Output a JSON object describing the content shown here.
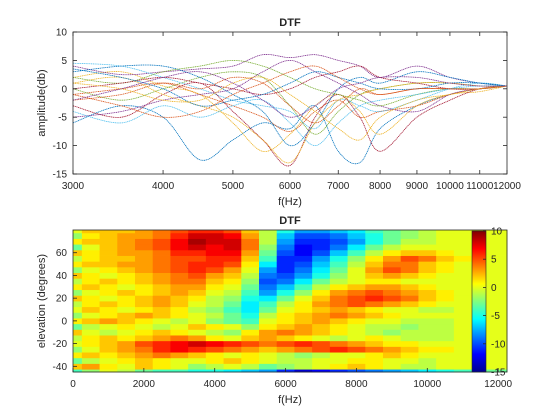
{
  "colors": {
    "series": [
      "#0072BD",
      "#D95319",
      "#EDB120",
      "#7E2F8E",
      "#77AC30",
      "#4DBEEE",
      "#A2142F"
    ],
    "axis": "#262626",
    "grid": "#e6e6e6"
  },
  "chart_data": [
    {
      "type": "line",
      "title": "DTF",
      "xlabel": "f(Hz)",
      "ylabel": "amplitude(db)",
      "xscale": "log",
      "xlim": [
        3000,
        12000
      ],
      "ylim": [
        -15,
        10
      ],
      "xticks": [
        3000,
        4000,
        5000,
        6000,
        7000,
        8000,
        9000,
        10000,
        11000,
        12000
      ],
      "xtick_labels": [
        "3000",
        "4000",
        "5000",
        "6000",
        "7000",
        "8000",
        "9000",
        "10000",
        "11000",
        "12000"
      ],
      "yticks": [
        -15,
        -10,
        -5,
        0,
        5,
        10
      ],
      "ytick_labels": [
        "-15",
        "-10",
        "-5",
        "0",
        "5",
        "10"
      ],
      "grid": false,
      "x": [
        3000,
        3500,
        4000,
        4500,
        5000,
        5500,
        6000,
        6500,
        7000,
        7500,
        8000,
        9000,
        10000,
        11000,
        12000
      ],
      "series": [
        {
          "values": [
            -6,
            -3,
            -5,
            -12.5,
            -9,
            -6,
            -7,
            -3,
            -11,
            -13,
            -7,
            -3,
            -1,
            0,
            0.5
          ]
        },
        {
          "values": [
            -1,
            0,
            1,
            -1,
            -3,
            -5,
            -7.5,
            -4,
            -2,
            -5,
            -4,
            -3,
            -1,
            0,
            0.5
          ]
        },
        {
          "values": [
            2,
            3,
            0.5,
            -1,
            -6,
            -11,
            -8,
            -3,
            -1,
            -4,
            -8,
            -3,
            -1,
            -0.5,
            0.5
          ]
        },
        {
          "values": [
            4,
            2.5,
            3,
            3.5,
            4,
            6,
            5.5,
            6,
            5,
            4,
            2,
            4,
            2,
            1,
            0.5
          ]
        },
        {
          "values": [
            0,
            -2,
            0,
            2,
            3,
            2,
            -3,
            -8,
            -4,
            -1,
            0,
            1,
            1,
            0.5,
            0.5
          ]
        },
        {
          "values": [
            4.5,
            4,
            2,
            0,
            -2,
            -3,
            -4,
            -7,
            -2,
            -3,
            -4,
            -2,
            0,
            1,
            0.5
          ]
        },
        {
          "values": [
            -3,
            -5,
            -1,
            1,
            -4,
            -9,
            -13.5,
            -5,
            -1,
            -5,
            -11,
            -5,
            -2,
            0,
            0.5
          ]
        },
        {
          "values": [
            3,
            4,
            4,
            2,
            -1,
            -4,
            -10,
            -6,
            0,
            2,
            1,
            3,
            2,
            1,
            0.5
          ]
        },
        {
          "values": [
            -2,
            -1,
            1,
            0,
            2,
            1,
            -3,
            -6,
            -3,
            0,
            -1,
            0,
            0,
            0,
            0.5
          ]
        },
        {
          "values": [
            1,
            2,
            -1,
            -3,
            -5,
            -9,
            -13,
            -6,
            -2,
            -1,
            0,
            1,
            1,
            0.5,
            0.5
          ]
        },
        {
          "values": [
            -5,
            -4,
            -2,
            -1,
            0,
            3,
            5,
            3,
            1,
            -1,
            -3,
            -4,
            -1,
            0,
            0.5
          ]
        },
        {
          "values": [
            2,
            1,
            3,
            4,
            5,
            4,
            2,
            0,
            -1,
            -2,
            -3,
            -1,
            0,
            0,
            0.5
          ]
        },
        {
          "values": [
            -4,
            -6,
            -3,
            -5,
            -3,
            -2,
            -6,
            -10,
            -6,
            -3,
            -2,
            -1,
            0,
            0.5,
            0.5
          ]
        },
        {
          "values": [
            0,
            1,
            2,
            1,
            0,
            -1,
            0,
            2,
            3,
            4,
            2,
            1,
            0,
            0,
            0.5
          ]
        },
        {
          "values": [
            3.5,
            2,
            0,
            -3,
            -2,
            -1,
            1,
            3,
            2,
            1,
            0,
            0,
            1,
            1,
            0.5
          ]
        },
        {
          "values": [
            -1,
            -3,
            -5,
            -4,
            -1,
            1,
            3,
            4,
            2,
            0,
            -1,
            0,
            0,
            0,
            0.5
          ]
        },
        {
          "values": [
            1,
            0,
            -2,
            -2,
            1,
            2,
            -1,
            -4,
            -7,
            -9,
            -5,
            -2,
            -1,
            0,
            0.5
          ]
        },
        {
          "values": [
            -2,
            0,
            2,
            3,
            1,
            -2,
            -5,
            -3,
            0,
            1,
            2,
            2,
            1,
            0.5,
            0.5
          ]
        }
      ]
    },
    {
      "type": "heatmap",
      "title": "DTF",
      "xlabel": "f(Hz)",
      "ylabel": "elevation (degrees)",
      "xlim": [
        0,
        12250
      ],
      "ylim": [
        -45,
        80
      ],
      "xticks": [
        0,
        2000,
        4000,
        6000,
        8000,
        10000,
        12000
      ],
      "xtick_labels": [
        "0",
        "2000",
        "4000",
        "6000",
        "8000",
        "10000",
        "12000"
      ],
      "yticks": [
        -40,
        -20,
        0,
        20,
        40,
        60
      ],
      "ytick_labels": [
        "-40",
        "-20",
        "0",
        "20",
        "40",
        "60"
      ],
      "colormap": "jet",
      "clim": [
        -15,
        10
      ],
      "colorbar_ticks": [
        -15,
        -10,
        -5,
        0,
        5,
        10
      ],
      "colorbar_tick_labels": [
        "-15",
        "-10",
        "-5",
        "0",
        "5",
        "10"
      ],
      "x": [
        0,
        500,
        1000,
        1500,
        2000,
        2500,
        3000,
        3500,
        4000,
        4500,
        5000,
        5500,
        6000,
        6500,
        7000,
        7500,
        8000,
        8500,
        9000,
        9500,
        10000,
        10500,
        11000,
        11500,
        12000
      ],
      "y": [
        -45,
        -40,
        -35,
        -30,
        -25,
        -20,
        -15,
        -10,
        -5,
        0,
        5,
        10,
        15,
        20,
        25,
        30,
        35,
        40,
        45,
        50,
        55,
        60,
        65,
        70,
        75,
        80
      ],
      "z": [
        [
          -4,
          -2,
          0,
          -1,
          -3,
          -4,
          -4,
          -5,
          -5,
          -6,
          -7,
          -8,
          -11,
          -13,
          -12,
          -11,
          -10,
          -9,
          -8,
          -7,
          -6,
          -5,
          -4,
          -3,
          -3
        ],
        [
          2,
          3,
          1,
          0,
          2,
          1,
          0,
          -2,
          -1,
          0,
          -1,
          -3,
          -2,
          -1,
          0,
          1,
          2,
          1,
          0,
          -1,
          -1,
          0,
          0,
          0,
          0
        ],
        [
          -3,
          -1,
          0,
          1,
          2,
          1,
          0,
          0,
          1,
          2,
          1,
          0,
          -1,
          -1,
          0,
          0,
          1,
          1,
          0,
          0,
          -1,
          0,
          0,
          0,
          0
        ],
        [
          1,
          2,
          1,
          2,
          3,
          4,
          3,
          2,
          1,
          0,
          1,
          0,
          -1,
          -2,
          -1,
          0,
          0,
          1,
          2,
          1,
          0,
          0,
          0,
          0,
          0
        ],
        [
          -2,
          0,
          2,
          3,
          4,
          6,
          7,
          6,
          5,
          4,
          3,
          2,
          3,
          4,
          5,
          6,
          5,
          4,
          3,
          2,
          1,
          1,
          0,
          0,
          0
        ],
        [
          0,
          1,
          2,
          3,
          5,
          6,
          7,
          8,
          7,
          6,
          5,
          4,
          5,
          6,
          5,
          4,
          3,
          2,
          1,
          1,
          0,
          0,
          0,
          0,
          0
        ],
        [
          -1,
          1,
          2,
          1,
          2,
          3,
          4,
          3,
          1,
          0,
          2,
          3,
          2,
          1,
          0,
          -1,
          0,
          1,
          0,
          -1,
          -1,
          -1,
          0,
          0,
          0
        ],
        [
          2,
          0,
          -1,
          0,
          1,
          2,
          1,
          0,
          -1,
          -2,
          1,
          3,
          4,
          3,
          2,
          1,
          0,
          -1,
          -2,
          -1,
          -1,
          -1,
          0,
          0,
          0
        ],
        [
          -3,
          -1,
          0,
          1,
          0,
          -1,
          0,
          2,
          1,
          0,
          -2,
          1,
          2,
          3,
          2,
          1,
          0,
          -1,
          -1,
          -2,
          -1,
          -1,
          0,
          0,
          0
        ],
        [
          1,
          2,
          3,
          2,
          1,
          0,
          -1,
          0,
          -2,
          -3,
          -4,
          0,
          1,
          2,
          3,
          2,
          1,
          0,
          0,
          -1,
          -1,
          -1,
          0,
          0,
          0
        ],
        [
          -2,
          0,
          1,
          2,
          3,
          2,
          1,
          0,
          -1,
          -3,
          -5,
          -1,
          1,
          2,
          3,
          4,
          3,
          2,
          1,
          0,
          0,
          0,
          0,
          0,
          0
        ],
        [
          0,
          2,
          1,
          0,
          1,
          2,
          1,
          -1,
          -2,
          -4,
          -6,
          -3,
          0,
          1,
          2,
          3,
          2,
          1,
          0,
          0,
          -1,
          -1,
          0,
          0,
          0
        ],
        [
          -1,
          1,
          2,
          1,
          2,
          3,
          2,
          0,
          -1,
          -3,
          -6,
          -4,
          -1,
          1,
          3,
          4,
          5,
          4,
          3,
          2,
          1,
          0,
          0,
          0,
          0
        ],
        [
          2,
          1,
          0,
          1,
          2,
          3,
          2,
          1,
          -1,
          -2,
          -5,
          -6,
          -3,
          0,
          2,
          4,
          5,
          6,
          5,
          4,
          2,
          1,
          0,
          0,
          0
        ],
        [
          -2,
          0,
          1,
          2,
          1,
          2,
          3,
          2,
          0,
          -1,
          -4,
          -8,
          -5,
          -2,
          1,
          3,
          4,
          5,
          4,
          3,
          2,
          1,
          0,
          0,
          0
        ],
        [
          1,
          2,
          1,
          0,
          1,
          2,
          3,
          3,
          1,
          0,
          -3,
          -9,
          -7,
          -4,
          -1,
          1,
          2,
          3,
          3,
          2,
          1,
          0,
          0,
          0,
          0
        ],
        [
          -1,
          1,
          2,
          1,
          2,
          3,
          4,
          4,
          2,
          1,
          -2,
          -10,
          -9,
          -6,
          -3,
          -1,
          0,
          1,
          1,
          0,
          0,
          0,
          0,
          0,
          0
        ],
        [
          2,
          1,
          0,
          1,
          2,
          3,
          4,
          5,
          3,
          2,
          -1,
          -9,
          -10,
          -8,
          -5,
          -2,
          0,
          2,
          3,
          2,
          1,
          0,
          0,
          0,
          0
        ],
        [
          -2,
          0,
          1,
          2,
          3,
          4,
          5,
          6,
          5,
          3,
          0,
          -8,
          -11,
          -9,
          -6,
          -3,
          0,
          3,
          5,
          4,
          2,
          1,
          0,
          0,
          0
        ],
        [
          1,
          2,
          2,
          3,
          3,
          4,
          5,
          6,
          6,
          5,
          1,
          -6,
          -11,
          -10,
          -7,
          -4,
          -1,
          2,
          4,
          4,
          2,
          1,
          0,
          0,
          0
        ],
        [
          -1,
          1,
          2,
          2,
          3,
          4,
          5,
          5,
          6,
          6,
          2,
          -4,
          -11,
          -11,
          -8,
          -5,
          -2,
          1,
          3,
          5,
          4,
          2,
          1,
          0,
          0
        ],
        [
          2,
          1,
          2,
          3,
          3,
          4,
          6,
          6,
          7,
          7,
          3,
          -3,
          -10,
          -12,
          -10,
          -7,
          -4,
          -1,
          1,
          2,
          2,
          1,
          0,
          0,
          0
        ],
        [
          -3,
          0,
          2,
          3,
          4,
          5,
          7,
          8,
          7,
          8,
          4,
          -2,
          -9,
          -12,
          -11,
          -9,
          -6,
          -3,
          -1,
          0,
          0,
          0,
          0,
          0,
          0
        ],
        [
          1,
          2,
          2,
          3,
          4,
          5,
          7,
          9,
          8,
          8,
          4,
          -1,
          -8,
          -11,
          -11,
          -10,
          -8,
          -5,
          -3,
          -1,
          -1,
          0,
          0,
          0,
          0
        ],
        [
          -2,
          1,
          2,
          3,
          3,
          4,
          6,
          8,
          8,
          7,
          3,
          -1,
          -7,
          -10,
          -10,
          -9,
          -7,
          -5,
          -3,
          -2,
          -1,
          0,
          0,
          0,
          0
        ],
        [
          0,
          2,
          2,
          2,
          3,
          4,
          5,
          6,
          6,
          5,
          2,
          -1,
          -5,
          -8,
          -8,
          -7,
          -6,
          -4,
          -3,
          -2,
          -1,
          0,
          0,
          0,
          0
        ]
      ]
    }
  ]
}
